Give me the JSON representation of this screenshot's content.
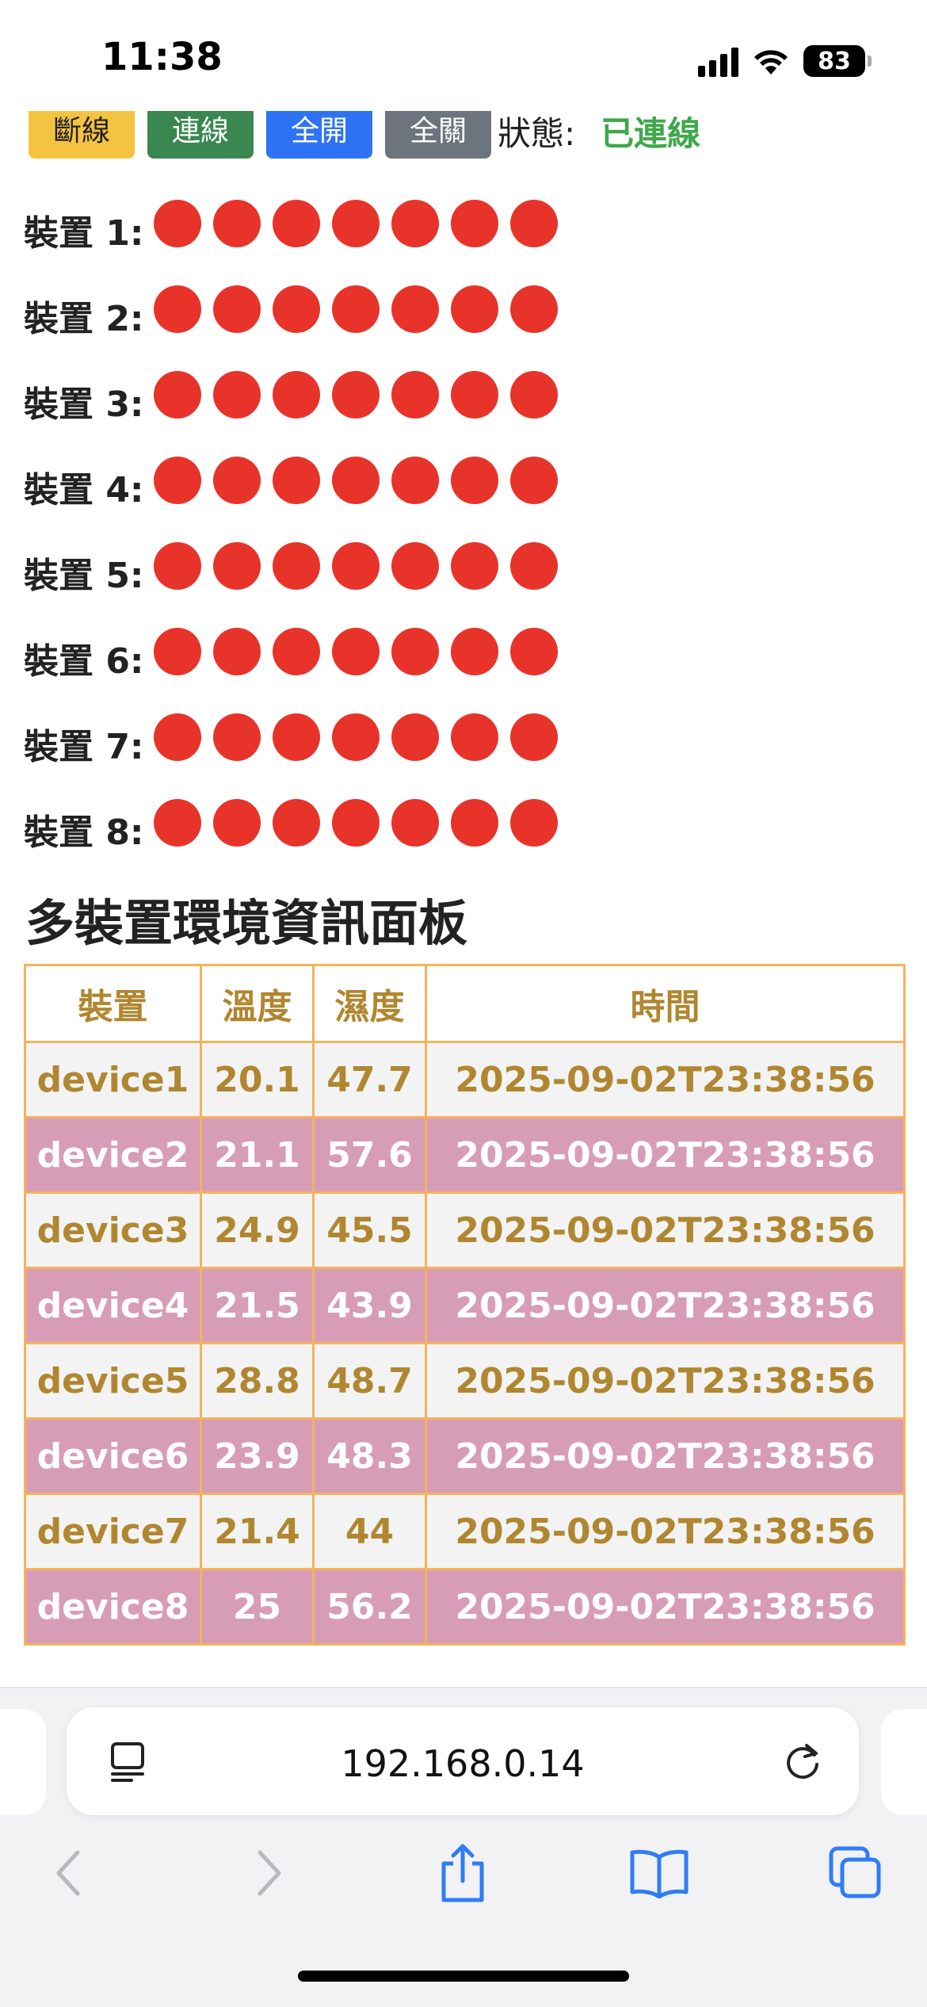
{
  "status_bar": {
    "time": "11:38",
    "battery": "83",
    "icons": [
      "cellular-signal-icon",
      "wifi-icon",
      "battery-icon"
    ]
  },
  "controls": {
    "buttons": [
      {
        "label": "斷線",
        "color": "#f5c342"
      },
      {
        "label": "連線",
        "color": "#3a8750"
      },
      {
        "label": "全開",
        "color": "#2f73f5"
      },
      {
        "label": "全關",
        "color": "#6c757d"
      }
    ],
    "status_label": "狀態:",
    "status_value": "已連線",
    "status_color": "#3ea84b"
  },
  "devices": [
    {
      "label": "裝置 1:",
      "lights": [
        "off",
        "off",
        "off",
        "off",
        "off",
        "off",
        "off"
      ]
    },
    {
      "label": "裝置 2:",
      "lights": [
        "off",
        "off",
        "off",
        "off",
        "off",
        "off",
        "off"
      ]
    },
    {
      "label": "裝置 3:",
      "lights": [
        "off",
        "off",
        "off",
        "off",
        "off",
        "off",
        "off"
      ]
    },
    {
      "label": "裝置 4:",
      "lights": [
        "off",
        "off",
        "off",
        "off",
        "off",
        "off",
        "off"
      ]
    },
    {
      "label": "裝置 5:",
      "lights": [
        "off",
        "off",
        "off",
        "off",
        "off",
        "off",
        "off"
      ]
    },
    {
      "label": "裝置 6:",
      "lights": [
        "off",
        "off",
        "off",
        "off",
        "off",
        "off",
        "off"
      ]
    },
    {
      "label": "裝置 7:",
      "lights": [
        "off",
        "off",
        "off",
        "off",
        "off",
        "off",
        "off"
      ]
    },
    {
      "label": "裝置 8:",
      "lights": [
        "off",
        "off",
        "off",
        "off",
        "off",
        "off",
        "off"
      ]
    }
  ],
  "light_color": "#e8332a",
  "dashboard": {
    "title": "多裝置環境資訊面板",
    "headers": [
      "裝置",
      "溫度",
      "濕度",
      "時間"
    ],
    "rows": [
      [
        "device1",
        "20.1",
        "47.7",
        "2025-09-02T23:38:56"
      ],
      [
        "device2",
        "21.1",
        "57.6",
        "2025-09-02T23:38:56"
      ],
      [
        "device3",
        "24.9",
        "45.5",
        "2025-09-02T23:38:56"
      ],
      [
        "device4",
        "21.5",
        "43.9",
        "2025-09-02T23:38:56"
      ],
      [
        "device5",
        "28.8",
        "48.7",
        "2025-09-02T23:38:56"
      ],
      [
        "device6",
        "23.9",
        "48.3",
        "2025-09-02T23:38:56"
      ],
      [
        "device7",
        "21.4",
        "44",
        "2025-09-02T23:38:56"
      ],
      [
        "device8",
        "25",
        "56.2",
        "2025-09-02T23:38:56"
      ]
    ],
    "colors": {
      "border": "#f6b25c",
      "text_gold": "#b08730",
      "row_pink": "#d79db7",
      "row_gray": "#f3f3f3"
    }
  },
  "browser": {
    "url": "192.168.0.14",
    "icons": [
      "reader-mode-icon",
      "reload-icon",
      "back-icon",
      "forward-icon",
      "share-icon",
      "bookmarks-icon",
      "tabs-icon"
    ]
  }
}
